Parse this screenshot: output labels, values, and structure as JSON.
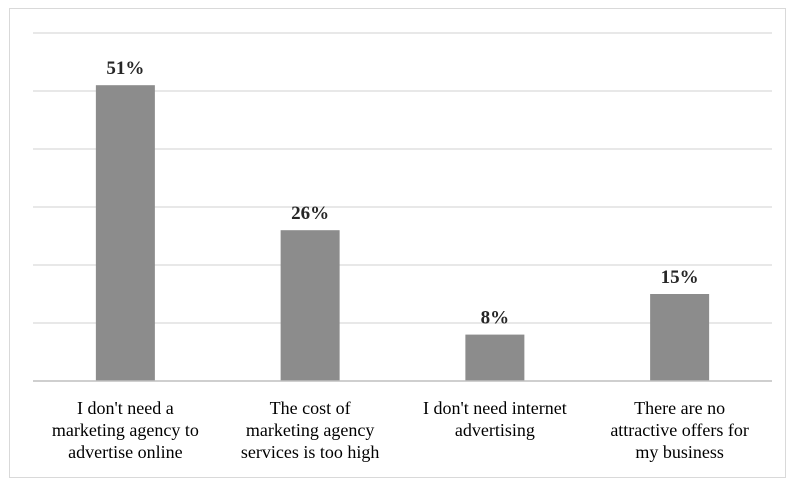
{
  "chart_data": {
    "type": "bar",
    "categories": [
      [
        "I don't need a",
        "marketing agency to",
        "advertise online"
      ],
      [
        "The cost of",
        "marketing agency",
        "services is too high"
      ],
      [
        "I don't need internet",
        "advertising"
      ],
      [
        "There are no",
        "attractive offers for",
        "my business"
      ]
    ],
    "values": [
      51,
      26,
      8,
      15
    ],
    "data_labels": [
      "51%",
      "26%",
      "8%",
      "15%"
    ],
    "ylim": [
      0,
      60
    ],
    "y_gridlines": [
      0,
      10,
      20,
      30,
      40,
      50,
      60
    ],
    "y_axis_visible": false,
    "grid": true,
    "legend": "none",
    "colors": {
      "bar": "#8c8c8c",
      "grid": "#d9d9d9",
      "axis": "#bfbfbf",
      "label": "#262626"
    }
  }
}
